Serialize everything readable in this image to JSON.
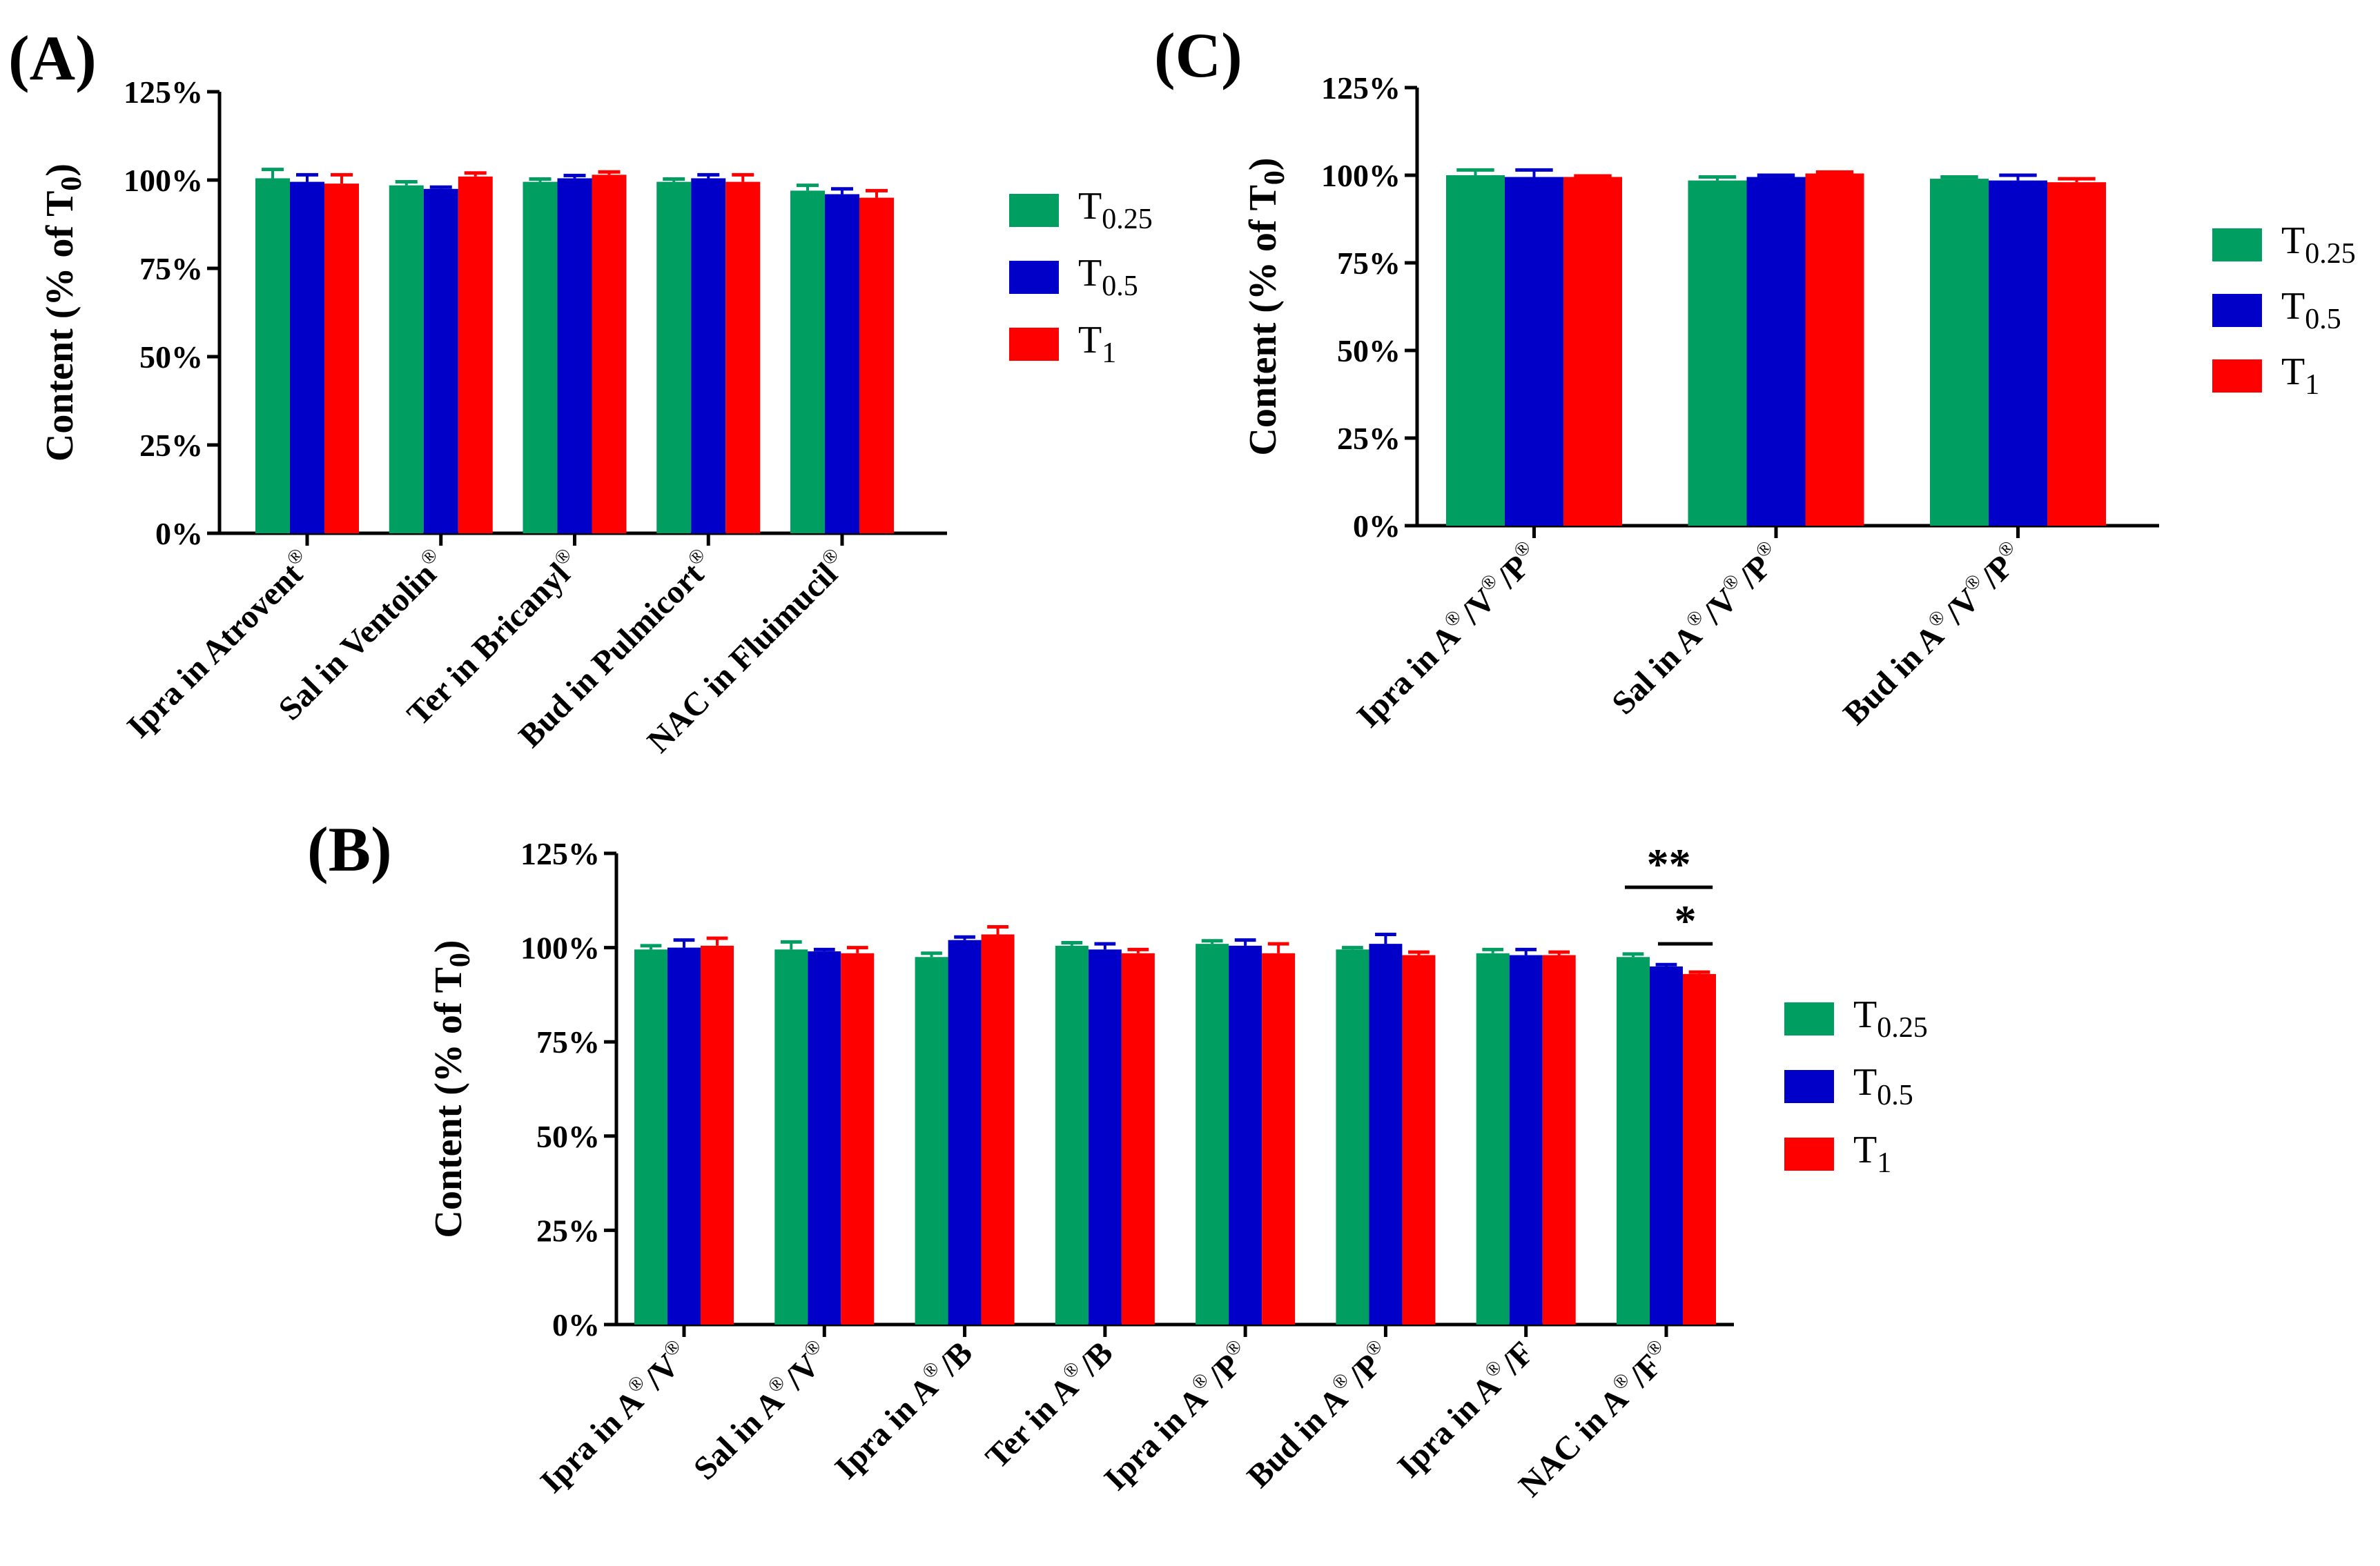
{
  "series_names": [
    "T0.25",
    "T0.5",
    "T1"
  ],
  "colors": {
    "T0.25": "#009e60",
    "T0.5": "#0000c8",
    "T1": "#ff0000"
  },
  "chart_data": [
    {
      "panel": "(A)",
      "type": "bar",
      "ylabel": "Content (% of T0)",
      "ylim": [
        0,
        125
      ],
      "yticks": [
        "0%",
        "25%",
        "50%",
        "75%",
        "100%",
        "125%"
      ],
      "categories": [
        "Ipra in Atrovent®",
        "Sal in Ventolin®",
        "Ter in Bricanyl®",
        "Bud in Pulmicort®",
        "NAC in Fluimucil®"
      ],
      "series": [
        {
          "name": "T0.25",
          "values": [
            100.5,
            98.5,
            99.5,
            99.5,
            97.0
          ],
          "errors": [
            2.5,
            1.0,
            0.8,
            0.8,
            1.5
          ]
        },
        {
          "name": "T0.5",
          "values": [
            99.5,
            97.5,
            100.5,
            100.5,
            96.0
          ],
          "errors": [
            2.0,
            0.5,
            0.8,
            1.0,
            1.5
          ]
        },
        {
          "name": "T1",
          "values": [
            99.0,
            101.0,
            101.5,
            99.5,
            95.0
          ],
          "errors": [
            2.5,
            1.0,
            0.8,
            2.0,
            2.0
          ]
        }
      ],
      "legend": "right",
      "annotations": []
    },
    {
      "panel": "(C)",
      "type": "bar",
      "ylabel": "Content (% of T0)",
      "ylim": [
        0,
        125
      ],
      "yticks": [
        "0%",
        "25%",
        "50%",
        "75%",
        "100%",
        "125%"
      ],
      "categories": [
        "Ipra in A®/V®/P®",
        "Sal in A®/V®/P®",
        "Bud in A®/V®/P®"
      ],
      "series": [
        {
          "name": "T0.25",
          "values": [
            100.0,
            98.5,
            99.0
          ],
          "errors": [
            1.5,
            1.0,
            0.5
          ]
        },
        {
          "name": "T0.5",
          "values": [
            99.5,
            99.5,
            98.5
          ],
          "errors": [
            2.0,
            0.5,
            1.5
          ]
        },
        {
          "name": "T1",
          "values": [
            99.5,
            100.5,
            98.0
          ],
          "errors": [
            0.3,
            0.4,
            1.0
          ]
        }
      ],
      "legend": "right",
      "annotations": []
    },
    {
      "panel": "(B)",
      "type": "bar",
      "ylabel": "Content (% of T0)",
      "ylim": [
        0,
        125
      ],
      "yticks": [
        "0%",
        "25%",
        "50%",
        "75%",
        "100%",
        "125%"
      ],
      "categories": [
        "Ipra in A®/V®",
        "Sal in A®/V®",
        "Ipra in A®/B",
        "Ter in A®/B",
        "Ipra in A®/P®",
        "Bud in A®/P®",
        "Ipra in A®/F",
        "NAC in A®/F®"
      ],
      "series": [
        {
          "name": "T0.25",
          "values": [
            99.5,
            99.5,
            97.5,
            100.5,
            101.0,
            99.5,
            98.5,
            97.5
          ],
          "errors": [
            1.0,
            2.0,
            1.0,
            0.8,
            0.8,
            0.5,
            1.0,
            0.8
          ]
        },
        {
          "name": "T0.5",
          "values": [
            100.0,
            99.0,
            102.0,
            99.5,
            100.5,
            101.0,
            98.0,
            95.0
          ],
          "errors": [
            2.0,
            0.5,
            0.8,
            1.5,
            1.5,
            2.5,
            1.5,
            0.5
          ]
        },
        {
          "name": "T1",
          "values": [
            100.5,
            98.5,
            103.5,
            98.5,
            98.5,
            98.0,
            98.0,
            93.0
          ],
          "errors": [
            2.0,
            1.5,
            2.0,
            1.0,
            2.5,
            0.8,
            0.8,
            0.5
          ]
        }
      ],
      "legend": "right",
      "annotations": [
        {
          "text": "**",
          "category": "NAC in A®/F®",
          "from": "T0.25",
          "to": "T1",
          "level": 116
        },
        {
          "text": "*",
          "category": "NAC in A®/F®",
          "from": "T0.5",
          "to": "T1",
          "level": 101
        }
      ]
    }
  ]
}
